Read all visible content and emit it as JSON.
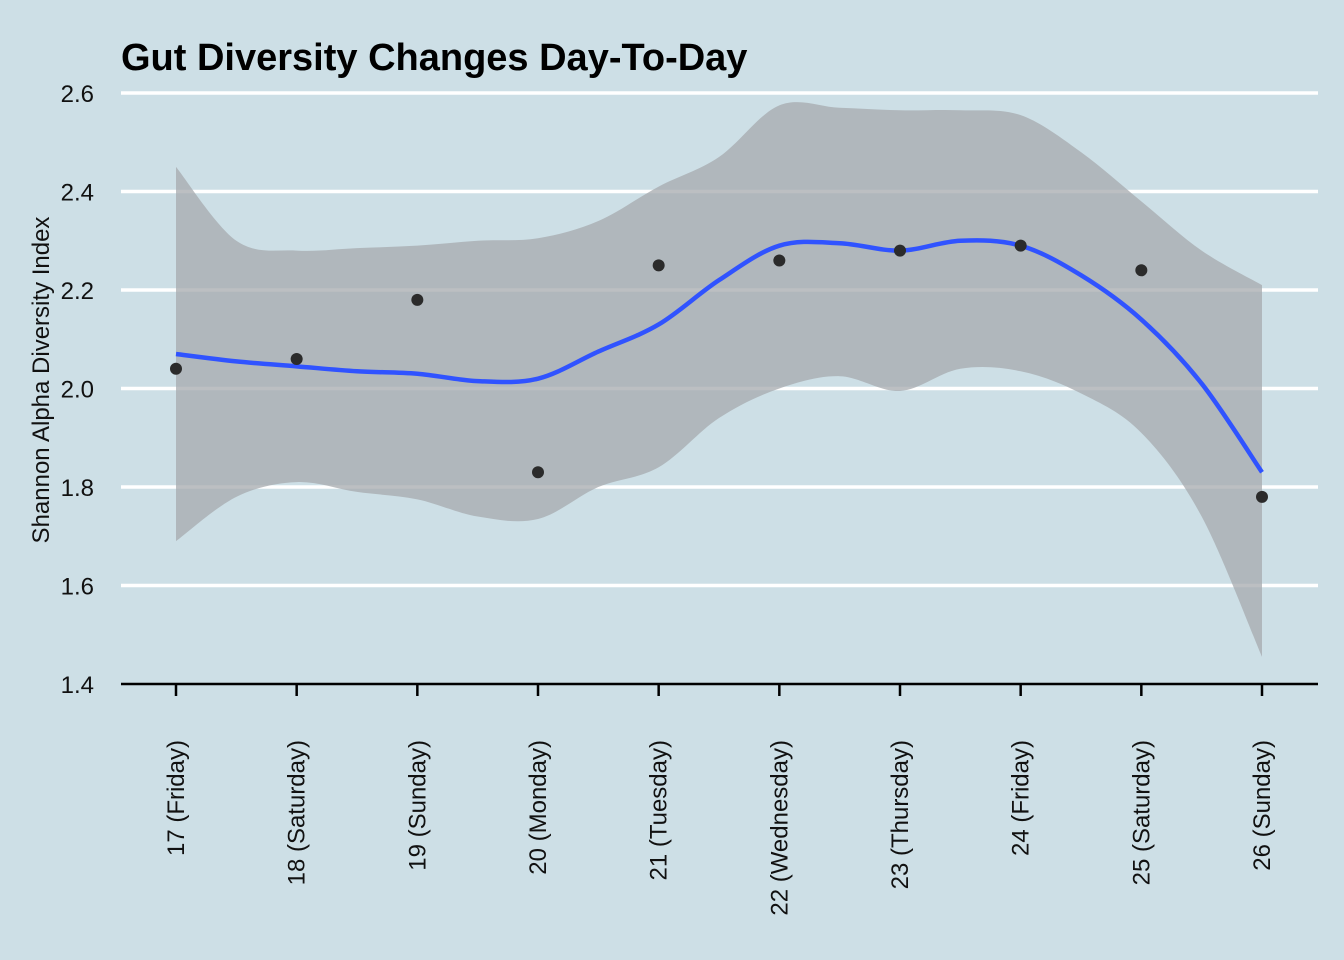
{
  "chart_data": {
    "type": "scatter",
    "title": "Gut Diversity Changes Day-To-Day",
    "xlabel": "",
    "ylabel": "Shannon Alpha Diversity Index",
    "categories": [
      "17 (Friday)",
      "18 (Saturday)",
      "19 (Sunday)",
      "20 (Monday)",
      "21 (Tuesday)",
      "22 (Wednesday)",
      "23 (Thursday)",
      "24 (Friday)",
      "25 (Saturday)",
      "26 (Sunday)"
    ],
    "ylim": [
      1.4,
      2.6
    ],
    "yticks": [
      "1.4",
      "1.6",
      "1.8",
      "2.0",
      "2.2",
      "2.4",
      "2.6"
    ],
    "grid": "horizontal",
    "points": [
      2.04,
      2.06,
      2.18,
      1.83,
      2.25,
      2.26,
      2.28,
      2.29,
      2.24,
      1.78
    ],
    "smooth": {
      "x": [
        1,
        1.5,
        2,
        2.5,
        3,
        3.5,
        4,
        4.5,
        5,
        5.5,
        6,
        6.5,
        7,
        7.5,
        8,
        8.5,
        9,
        9.5,
        10
      ],
      "fit": [
        2.07,
        2.055,
        2.045,
        2.035,
        2.03,
        2.015,
        2.02,
        2.075,
        2.13,
        2.22,
        2.29,
        2.295,
        2.28,
        2.3,
        2.29,
        2.23,
        2.14,
        2.01,
        1.83
      ],
      "lower": [
        1.69,
        1.78,
        1.81,
        1.79,
        1.775,
        1.74,
        1.735,
        1.8,
        1.84,
        1.94,
        2.0,
        2.025,
        1.995,
        2.04,
        2.035,
        1.99,
        1.91,
        1.74,
        1.455
      ],
      "upper": [
        2.45,
        2.3,
        2.28,
        2.285,
        2.29,
        2.3,
        2.305,
        2.34,
        2.41,
        2.47,
        2.575,
        2.57,
        2.565,
        2.565,
        2.555,
        2.48,
        2.38,
        2.28,
        2.21
      ]
    },
    "colors": {
      "background": "#cddfe6",
      "grid": "#ffffff",
      "band": "#a5aaad",
      "line": "#3053ff",
      "points": "#2b2b2b",
      "axis": "#000000"
    }
  }
}
